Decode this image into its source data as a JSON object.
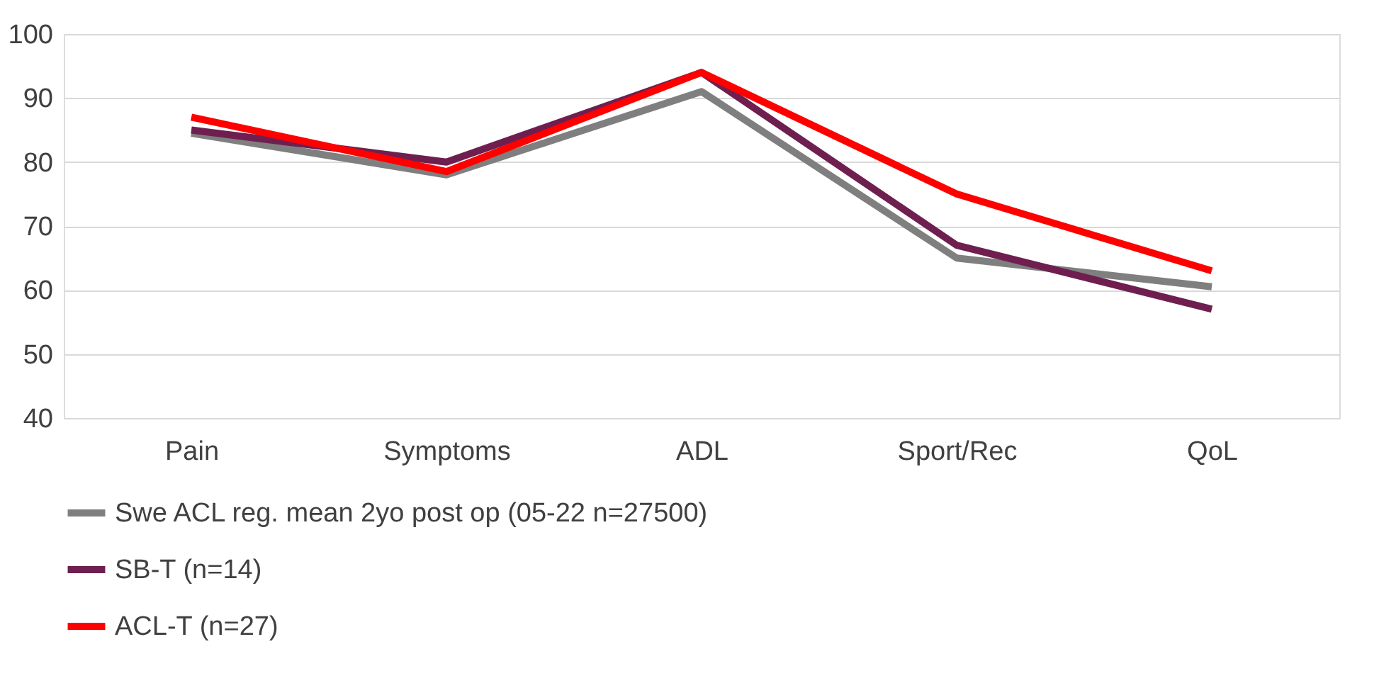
{
  "chart_data": {
    "type": "line",
    "categories": [
      "Pain",
      "Symptoms",
      "ADL",
      "Sport/Rec",
      "QoL"
    ],
    "series": [
      {
        "name": "Swe ACL reg. mean 2yo post op (05-22 n=27500)",
        "color": "#7f7f7f",
        "values": [
          84.5,
          78,
          91,
          65,
          60.5
        ]
      },
      {
        "name": "SB-T (n=14)",
        "color": "#6e1f4f",
        "values": [
          85,
          80,
          94,
          67,
          57
        ]
      },
      {
        "name": "ACL-T (n=27)",
        "color": "#ff0000",
        "values": [
          87,
          78.5,
          94,
          75,
          63
        ]
      }
    ],
    "ylim": [
      40,
      100
    ],
    "yticks": [
      40,
      50,
      60,
      70,
      80,
      90,
      100
    ],
    "grid": "y",
    "legend": "bottom",
    "marker": "none",
    "line_style": "solid"
  }
}
